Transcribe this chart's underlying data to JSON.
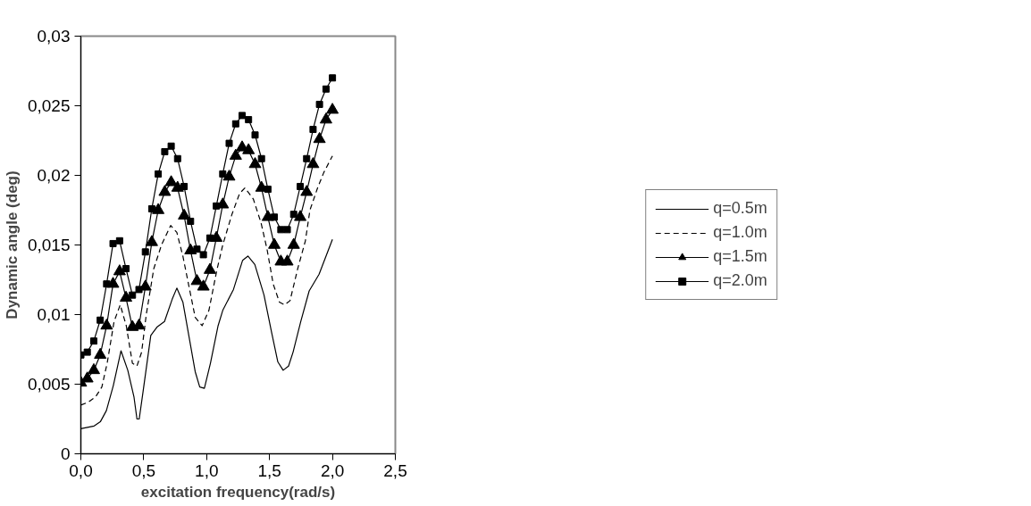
{
  "chart_data": {
    "type": "line",
    "xlabel": "excitation frequency(rad/s)",
    "ylabel": "Dynamic angle (deg)",
    "x": [
      0,
      0.051,
      0.103,
      0.154,
      0.205,
      0.256,
      0.308,
      0.359,
      0.41,
      0.462,
      0.513,
      0.564,
      0.615,
      0.667,
      0.718,
      0.769,
      0.821,
      0.872,
      0.923,
      0.974,
      1.026,
      1.077,
      1.128,
      1.179,
      1.231,
      1.282,
      1.333,
      1.385,
      1.436,
      1.487,
      1.538,
      1.59,
      1.641,
      1.692,
      1.744,
      1.795,
      1.846,
      1.897,
      1.949,
      2.0
    ],
    "series": [
      {
        "name": "q=0.5m",
        "color": "#000000",
        "line_style": "solid",
        "marker": "none",
        "x": [
          0,
          0.106,
          0.155,
          0.203,
          0.258,
          0.319,
          0.373,
          0.422,
          0.446,
          0.464,
          0.495,
          0.556,
          0.605,
          0.665,
          0.726,
          0.763,
          0.811,
          0.86,
          0.909,
          0.945,
          0.982,
          1.03,
          1.091,
          1.128,
          1.213,
          1.286,
          1.328,
          1.383,
          1.456,
          1.517,
          1.566,
          1.608,
          1.651,
          1.687,
          1.748,
          1.815,
          1.894,
          2.0
        ],
        "values": [
          0.0018,
          0.002,
          0.0023,
          0.0031,
          0.0049,
          0.0074,
          0.006,
          0.0041,
          0.0025,
          0.0025,
          0.0045,
          0.0085,
          0.0091,
          0.0095,
          0.0111,
          0.0119,
          0.0109,
          0.0084,
          0.0059,
          0.0048,
          0.0047,
          0.0065,
          0.0092,
          0.0103,
          0.0118,
          0.0139,
          0.0142,
          0.0136,
          0.0114,
          0.0087,
          0.0066,
          0.006,
          0.0063,
          0.0073,
          0.0095,
          0.0117,
          0.0129,
          0.0154
        ]
      },
      {
        "name": "q=1.0m",
        "color": "#000000",
        "line_style": "dashed",
        "marker": "none",
        "x": [
          0,
          0.057,
          0.118,
          0.167,
          0.209,
          0.264,
          0.313,
          0.361,
          0.41,
          0.446,
          0.483,
          0.52,
          0.58,
          0.641,
          0.714,
          0.763,
          0.811,
          0.86,
          0.909,
          0.964,
          1.018,
          1.079,
          1.128,
          1.201,
          1.262,
          1.304,
          1.371,
          1.432,
          1.48,
          1.529,
          1.578,
          1.62,
          1.663,
          1.724,
          1.785,
          1.821,
          1.882,
          1.931,
          2.0
        ],
        "values": [
          0.0035,
          0.0037,
          0.0041,
          0.0048,
          0.0065,
          0.0095,
          0.0107,
          0.0092,
          0.0065,
          0.0063,
          0.0073,
          0.01,
          0.0133,
          0.015,
          0.0164,
          0.0159,
          0.0142,
          0.012,
          0.0098,
          0.0092,
          0.0103,
          0.0131,
          0.015,
          0.0172,
          0.0187,
          0.0191,
          0.0183,
          0.0166,
          0.0147,
          0.0122,
          0.0109,
          0.0107,
          0.011,
          0.0133,
          0.0153,
          0.0175,
          0.0191,
          0.0202,
          0.0214
        ]
      },
      {
        "name": "q=1.5m",
        "color": "#000000",
        "line_style": "solid",
        "marker": "triangle",
        "values": [
          0.0051,
          0.0054,
          0.006,
          0.0071,
          0.0092,
          0.0122,
          0.0131,
          0.0112,
          0.0091,
          0.0092,
          0.012,
          0.0152,
          0.0175,
          0.0188,
          0.0195,
          0.0191,
          0.0171,
          0.0146,
          0.0124,
          0.012,
          0.0132,
          0.0155,
          0.0179,
          0.0199,
          0.0214,
          0.022,
          0.0218,
          0.0208,
          0.0191,
          0.017,
          0.015,
          0.0138,
          0.0138,
          0.015,
          0.017,
          0.0188,
          0.0208,
          0.0226,
          0.024,
          0.0247
        ]
      },
      {
        "name": "q=2.0m",
        "color": "#000000",
        "line_style": "solid",
        "marker": "square",
        "values": [
          0.0071,
          0.0073,
          0.0081,
          0.0096,
          0.0122,
          0.0151,
          0.0153,
          0.0133,
          0.0114,
          0.0118,
          0.0145,
          0.0176,
          0.0201,
          0.0217,
          0.0221,
          0.0212,
          0.0192,
          0.0167,
          0.0147,
          0.0143,
          0.0155,
          0.0178,
          0.0201,
          0.0223,
          0.0237,
          0.0243,
          0.024,
          0.0229,
          0.0212,
          0.019,
          0.017,
          0.0161,
          0.0161,
          0.0172,
          0.0192,
          0.0212,
          0.0233,
          0.0251,
          0.0262,
          0.027
        ]
      }
    ],
    "xlim": [
      0,
      2.5
    ],
    "xticks": [
      {
        "value": 0,
        "label": "0,0"
      },
      {
        "value": 0.5,
        "label": "0,5"
      },
      {
        "value": 1.0,
        "label": "1,0"
      },
      {
        "value": 1.5,
        "label": "1,5"
      },
      {
        "value": 2.0,
        "label": "2,0"
      },
      {
        "value": 2.5,
        "label": "2,5"
      }
    ],
    "ylim": [
      0,
      0.03
    ],
    "yticks": [
      0,
      {
        "value": 0.005,
        "label": "0,005"
      },
      {
        "value": 0.01,
        "label": "0,01"
      },
      {
        "value": 0.015,
        "label": "0,015"
      },
      {
        "value": 0.02,
        "label": "0,02"
      },
      {
        "value": 0.025,
        "label": "0,025"
      },
      {
        "value": 0.03,
        "label": "0,03"
      }
    ],
    "grid": false,
    "legend": "right"
  }
}
